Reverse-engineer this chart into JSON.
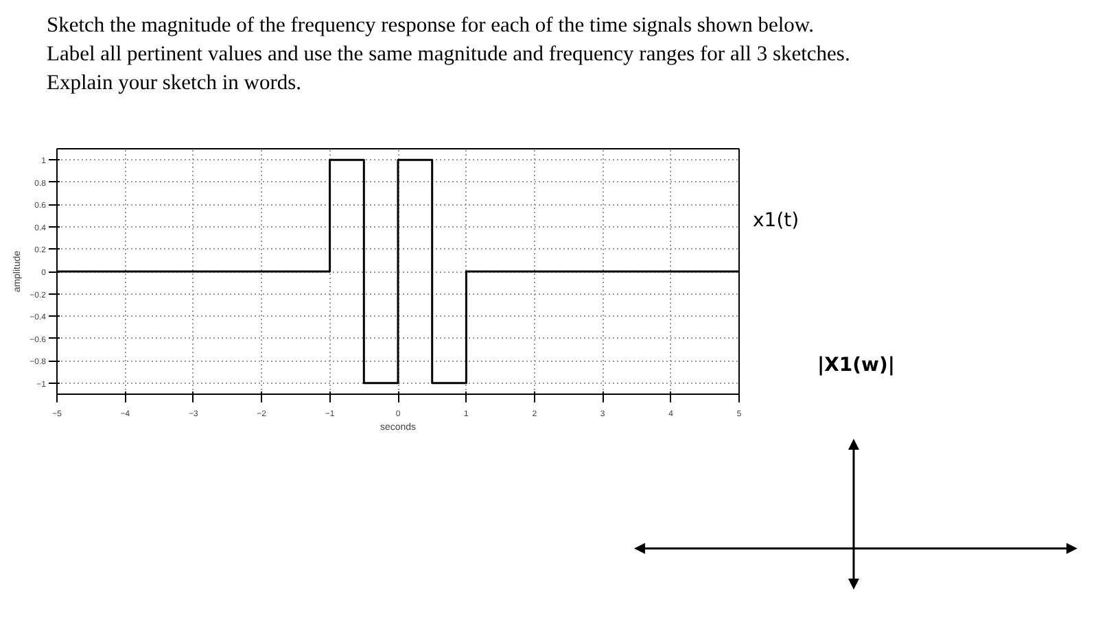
{
  "chart_data": {
    "type": "step",
    "title": "Sketch the magnitude of the frequency response for each of the time signals shown below.\nLabel all pertinent values and use the same magnitude and frequency ranges for all 3 sketches.\nExplain your sketch in words.",
    "xlabel": "seconds",
    "ylabel": "amplitude",
    "x": [
      -5,
      -1,
      -0.5,
      0,
      0.5,
      1,
      5
    ],
    "series": [
      {
        "color": "#000000",
        "values": [
          0,
          1,
          -1,
          1,
          -1,
          0,
          0
        ]
      }
    ],
    "xlim": [
      -5,
      5
    ],
    "ylim": [
      -1.1,
      1.1
    ],
    "xticks": [
      -5,
      -4,
      -3,
      -2,
      -1,
      0,
      1,
      2,
      3,
      4,
      5
    ],
    "yticks": [
      -1,
      -0.8,
      -0.6,
      -0.4,
      -0.2,
      0,
      0.2,
      0.4,
      0.6,
      0.8,
      1
    ],
    "grid": true,
    "line_style": "solid",
    "annotations": [
      "x1(t)",
      "|X1(w)|"
    ]
  }
}
